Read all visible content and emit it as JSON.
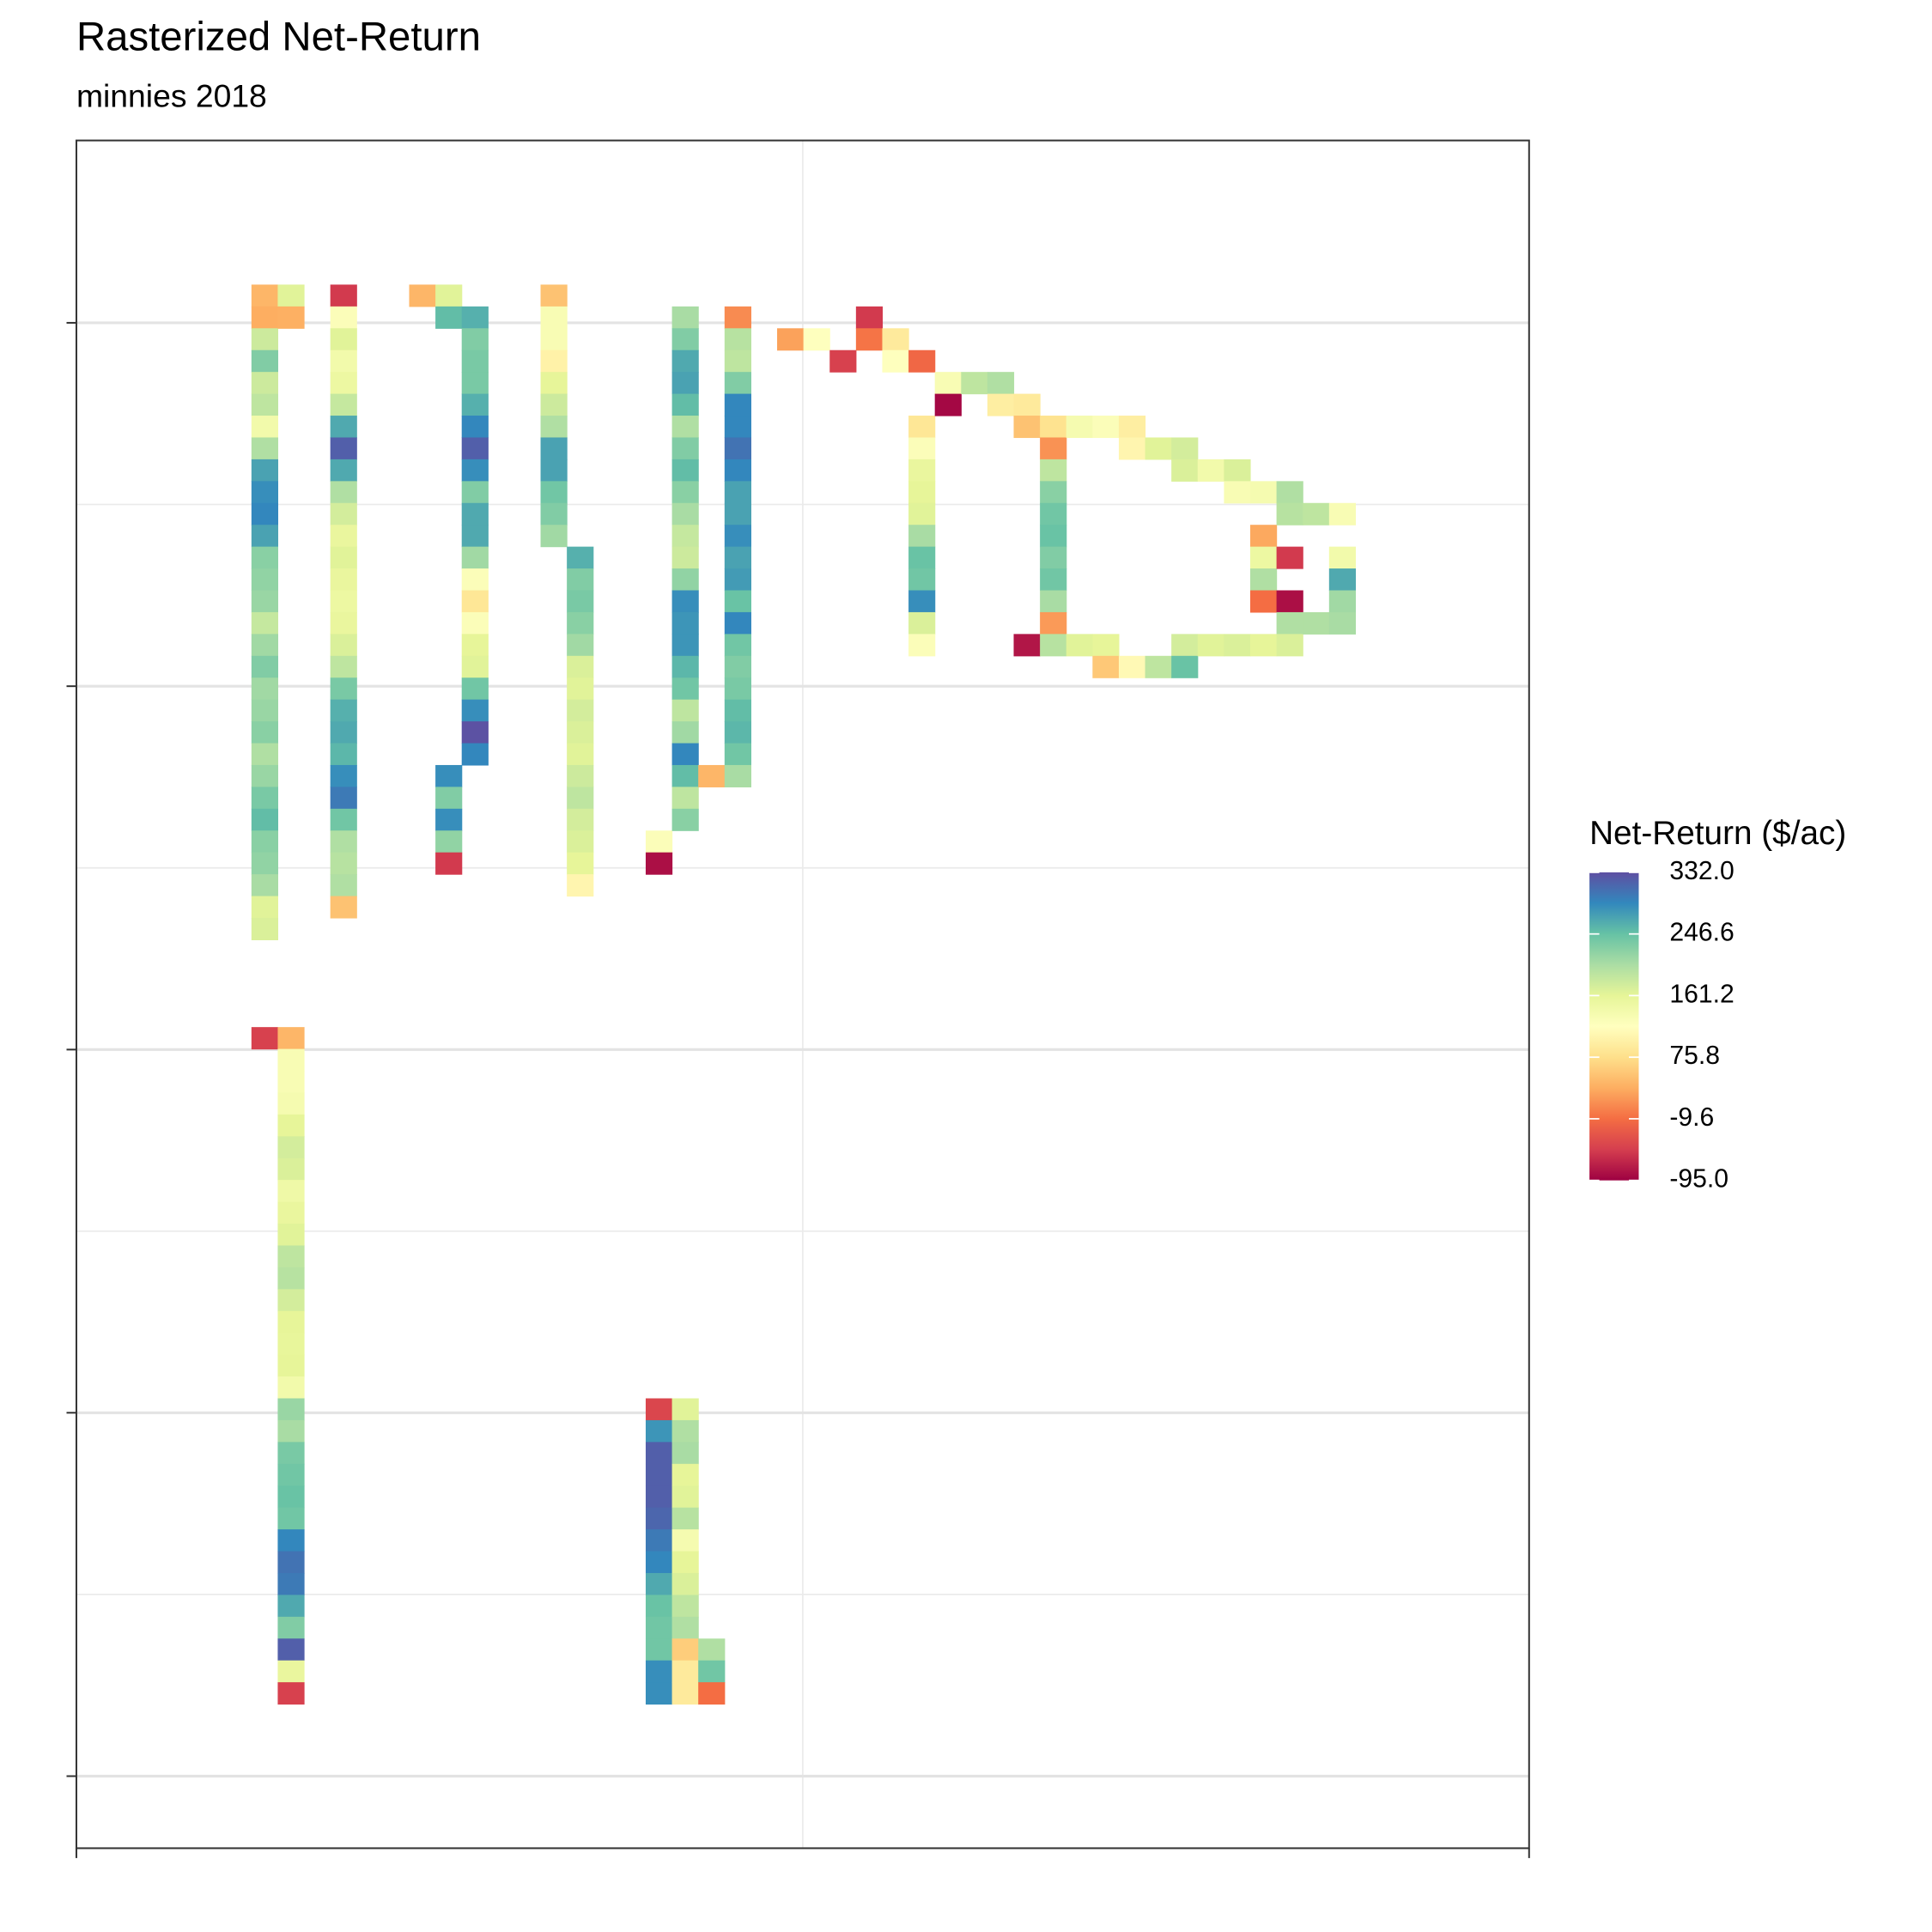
{
  "chart_data": {
    "type": "heatmap",
    "title": "Rasterized Net-Return",
    "subtitle": "minnies 2018",
    "legend_title": "Net-Return ($/ac)",
    "colorscale": [
      "#9E0142",
      "#D53E4F",
      "#F46D43",
      "#FDAE61",
      "#FEE08B",
      "#FFFFBF",
      "#E6F598",
      "#ABDDA4",
      "#66C2A5",
      "#3288BD",
      "#5E4FA2"
    ],
    "zlim": [
      -95,
      332
    ],
    "zticks": [
      {
        "value": 332,
        "label": "332.0"
      },
      {
        "value": 246.6,
        "label": "246.6"
      },
      {
        "value": 161.2,
        "label": "161.2"
      },
      {
        "value": 75.8,
        "label": "75.8"
      },
      {
        "value": -9.6,
        "label": "-9.6"
      },
      {
        "value": -95,
        "label": "-95.0"
      }
    ],
    "xlim": [
      -6.66,
      48.61
    ],
    "xticks": [
      -6.66,
      48.61
    ],
    "ylim": [
      -6.6,
      71.6
    ],
    "yticks": [
      1.75,
      18.39,
      35.03,
      51.66,
      68.3
    ],
    "grid": true,
    "strips": [
      {
        "x": 0,
        "y": 0,
        "values": [
          40,
          33,
          180,
          230,
          180,
          190,
          140,
          200,
          270,
          285,
          290,
          270,
          225,
          220,
          215,
          185,
          210,
          230,
          210,
          215,
          225,
          200,
          215,
          235,
          250,
          225,
          220,
          205,
          165,
          170
        ]
      },
      {
        "x": 0,
        "y": 34,
        "values": [
          -50
        ]
      },
      {
        "x": 1,
        "y": 0,
        "values": [
          165,
          35
        ]
      },
      {
        "x": 1,
        "y": 34,
        "values": [
          40,
          130,
          130,
          135,
          160,
          175,
          170,
          145,
          155,
          165,
          190,
          195,
          175,
          160,
          158,
          160,
          140,
          215,
          205,
          235,
          240,
          245,
          240,
          290,
          305,
          300,
          265,
          230,
          320,
          155,
          -50
        ]
      },
      {
        "x": 3,
        "y": 0,
        "values": [
          -55,
          125,
          165,
          140,
          150,
          185,
          265,
          320,
          265,
          200,
          175,
          155,
          165,
          155,
          150,
          155,
          170,
          190,
          235,
          260,
          265,
          255,
          285,
          300,
          240,
          200,
          195,
          200,
          50
        ]
      },
      {
        "x": 6,
        "y": 0,
        "values": [
          40
        ]
      },
      {
        "x": 7,
        "y": 0,
        "values": [
          165,
          250
        ]
      },
      {
        "x": 7,
        "y": 22,
        "values": [
          285,
          230,
          285,
          220,
          -55
        ]
      },
      {
        "x": 8,
        "y": 1,
        "values": [
          260,
          230,
          235,
          235,
          260,
          290,
          320,
          285,
          230,
          265,
          265,
          210,
          125,
          85,
          125,
          160,
          165,
          240,
          285,
          330,
          290
        ]
      },
      {
        "x": 11,
        "y": 0,
        "values": [
          50,
          130,
          130,
          100,
          160,
          180,
          200,
          270,
          270,
          240,
          230,
          210
        ]
      },
      {
        "x": 12,
        "y": 12,
        "values": [
          260,
          230,
          235,
          225,
          210,
          170,
          165,
          175,
          170,
          165,
          180,
          190,
          175,
          170,
          160,
          105
        ]
      },
      {
        "x": 15,
        "y": 25,
        "values": [
          125,
          -85
        ]
      },
      {
        "x": 15,
        "y": 51,
        "values": [
          -45,
          280,
          320,
          320,
          320,
          315,
          300,
          290,
          265,
          245,
          240,
          240,
          285,
          285
        ]
      },
      {
        "x": 16,
        "y": 1,
        "values": [
          205,
          230,
          265,
          270,
          250,
          200,
          230,
          250,
          225,
          205,
          185,
          180,
          220,
          285,
          280,
          280,
          255,
          240,
          190,
          210,
          290,
          250,
          190,
          225
        ]
      },
      {
        "x": 16,
        "y": 51,
        "values": [
          165,
          200,
          205,
          160,
          165,
          195,
          135,
          160,
          170,
          190,
          200,
          60,
          90,
          90
        ]
      },
      {
        "x": 17,
        "y": 22,
        "values": [
          40
        ]
      },
      {
        "x": 17,
        "y": 62,
        "values": [
          200,
          240,
          -10
        ]
      },
      {
        "x": 18,
        "y": 1,
        "values": [
          10,
          195,
          190,
          230,
          290,
          290,
          305,
          290,
          270,
          270,
          285,
          270,
          275,
          245,
          290,
          240,
          230,
          235,
          250,
          255,
          240,
          205
        ]
      },
      {
        "x": 20,
        "y": 2,
        "values": [
          25
        ]
      },
      {
        "x": 21,
        "y": 2,
        "values": [
          120
        ]
      },
      {
        "x": 22,
        "y": 3,
        "values": [
          -50
        ]
      },
      {
        "x": 23,
        "y": 1,
        "values": [
          -55,
          -5
        ]
      },
      {
        "x": 24,
        "y": 2,
        "values": [
          90,
          120
        ]
      },
      {
        "x": 25,
        "y": 3,
        "values": [
          -15
        ]
      },
      {
        "x": 25,
        "y": 6,
        "values": [
          85,
          125,
          155,
          160,
          165,
          205,
          245,
          240,
          285,
          170,
          125
        ]
      },
      {
        "x": 26,
        "y": 4,
        "values": [
          130,
          -90
        ]
      },
      {
        "x": 27,
        "y": 4,
        "values": [
          190
        ]
      },
      {
        "x": 28,
        "y": 4,
        "values": [
          200,
          95
        ]
      },
      {
        "x": 29,
        "y": 5,
        "values": [
          90,
          50
        ]
      },
      {
        "x": 29,
        "y": 16,
        "values": [
          -80
        ]
      },
      {
        "x": 30,
        "y": 6,
        "values": [
          80,
          15,
          190,
          225,
          240,
          245,
          230,
          240,
          205,
          20,
          195
        ]
      },
      {
        "x": 31,
        "y": 6,
        "values": [
          135
        ]
      },
      {
        "x": 31,
        "y": 16,
        "values": [
          165
        ]
      },
      {
        "x": 32,
        "y": 6,
        "values": [
          125
        ]
      },
      {
        "x": 32,
        "y": 16,
        "values": [
          160,
          55
        ]
      },
      {
        "x": 33,
        "y": 6,
        "values": [
          95,
          105
        ]
      },
      {
        "x": 33,
        "y": 17,
        "values": [
          110
        ]
      },
      {
        "x": 34,
        "y": 7,
        "values": [
          165
        ]
      },
      {
        "x": 34,
        "y": 17,
        "values": [
          190
        ]
      },
      {
        "x": 35,
        "y": 7,
        "values": [
          175,
          170
        ]
      },
      {
        "x": 35,
        "y": 16,
        "values": [
          175,
          245
        ]
      },
      {
        "x": 36,
        "y": 8,
        "values": [
          140
        ]
      },
      {
        "x": 36,
        "y": 16,
        "values": [
          165
        ]
      },
      {
        "x": 37,
        "y": 8,
        "values": [
          170,
          130
        ]
      },
      {
        "x": 37,
        "y": 16,
        "values": [
          170
        ]
      },
      {
        "x": 38,
        "y": 9,
        "values": [
          135
        ]
      },
      {
        "x": 38,
        "y": 11,
        "values": [
          30,
          150,
          200,
          -10
        ]
      },
      {
        "x": 38,
        "y": 16,
        "values": [
          160
        ]
      },
      {
        "x": 39,
        "y": 9,
        "values": [
          200,
          195
        ]
      },
      {
        "x": 39,
        "y": 12,
        "values": [
          -55
        ]
      },
      {
        "x": 39,
        "y": 14,
        "values": [
          -85,
          200,
          170
        ]
      },
      {
        "x": 40,
        "y": 10,
        "values": [
          190
        ]
      },
      {
        "x": 40,
        "y": 15,
        "values": [
          200
        ]
      },
      {
        "x": 41,
        "y": 10,
        "values": [
          130
        ]
      },
      {
        "x": 41,
        "y": 12,
        "values": [
          140,
          265,
          210,
          205
        ]
      }
    ]
  }
}
